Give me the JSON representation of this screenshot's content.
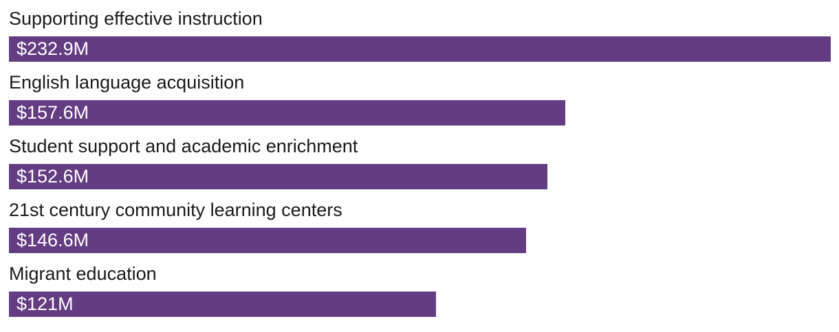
{
  "chart_data": {
    "type": "bar",
    "orientation": "horizontal",
    "categories": [
      "Supporting effective instruction",
      "English language acquisition",
      "Student support and academic enrichment",
      "21st century community learning centers",
      "Migrant education"
    ],
    "values": [
      232.9,
      157.6,
      152.6,
      146.6,
      121
    ],
    "value_labels": [
      "$232.9M",
      "$157.6M",
      "$152.6M",
      "$146.6M",
      "$121M"
    ],
    "xlim": [
      0,
      232.9
    ],
    "grid": false,
    "legend": false,
    "colors": {
      "bar": "#633C82",
      "category_label": "#1A1A1A",
      "value_label": "#FFFFFF",
      "background": "#FFFFFF"
    }
  }
}
